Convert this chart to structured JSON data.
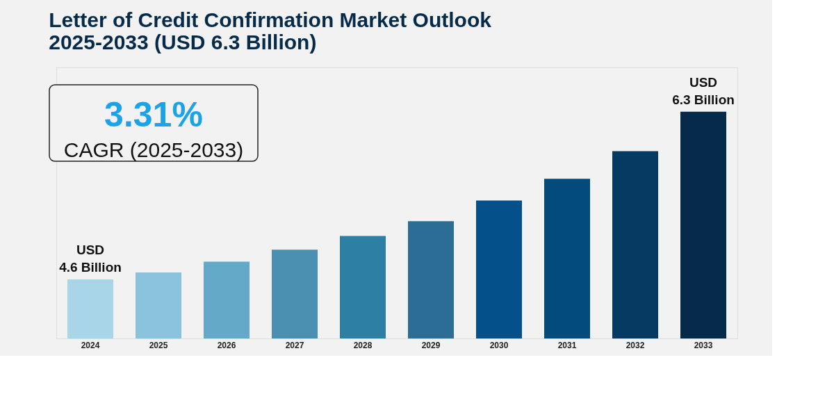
{
  "chart_data": {
    "type": "bar",
    "title": [
      "Letter of Credit Confirmation Market Outlook",
      "2025-2033 (USD 6.3 Billion)"
    ],
    "categories": [
      "2024",
      "2025",
      "2026",
      "2027",
      "2028",
      "2029",
      "2030",
      "2031",
      "2032",
      "2033"
    ],
    "values": [
      4.6,
      4.67,
      4.78,
      4.9,
      5.04,
      5.19,
      5.4,
      5.62,
      5.9,
      6.3
    ],
    "colors": [
      "#a8d5e8",
      "#8cc3dc",
      "#64a9c8",
      "#4b90b1",
      "#2e7fa4",
      "#2b6d94",
      "#04508a",
      "#034a7d",
      "#063a63",
      "#062a4a"
    ],
    "ylim": [
      4.0,
      6.75
    ],
    "value_labels": [
      "USD\n4.6 Billion",
      null,
      null,
      null,
      null,
      null,
      null,
      null,
      null,
      "USD\n6.3 Billion"
    ],
    "annotations": [
      "3.31%",
      "CAGR (2025-2033)"
    ]
  }
}
